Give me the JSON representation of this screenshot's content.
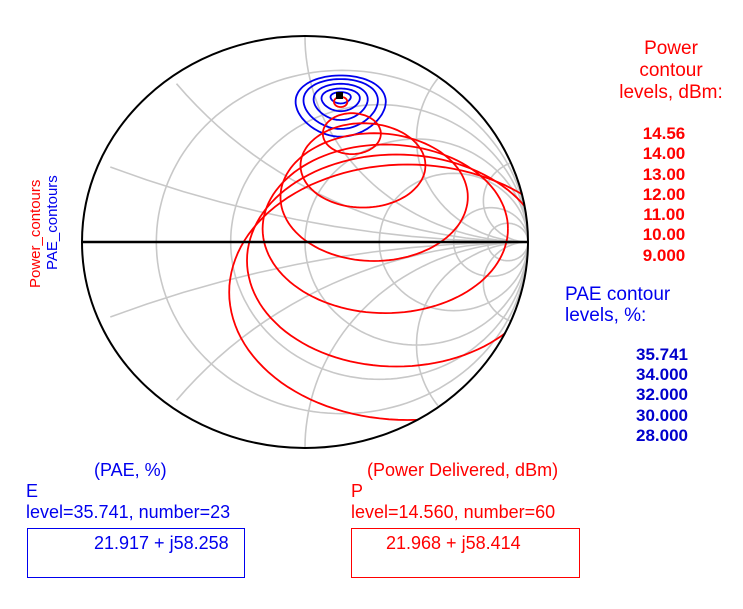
{
  "chart_data": {
    "type": "smith-chart",
    "vertical_labels": {
      "power": "Power_contours",
      "pae": "PAE_contours"
    },
    "power_legend": {
      "title_lines": [
        "Power",
        "contour",
        "levels, dBm:"
      ],
      "levels": [
        "14.56",
        "14.00",
        "13.00",
        "12.00",
        "11.00",
        "10.00",
        "9.000"
      ],
      "color": "#ff0000"
    },
    "pae_legend": {
      "title_lines": [
        "PAE contour",
        "levels, %:"
      ],
      "levels": [
        "35.741",
        "34.000",
        "32.000",
        "30.000",
        "28.000"
      ],
      "color": "#0000ee"
    },
    "markers": [
      {
        "letter": "E",
        "header": "(PAE, %)",
        "level_text": "level=35.741, number=23",
        "impedance": "21.917 + j58.258",
        "color": "#0000ee"
      },
      {
        "letter": "P",
        "header": "(Power Delivered, dBm)",
        "level_text": "level=14.560, number=60",
        "impedance": "21.968 + j58.414",
        "color": "#ff0000"
      }
    ],
    "grid": true
  }
}
